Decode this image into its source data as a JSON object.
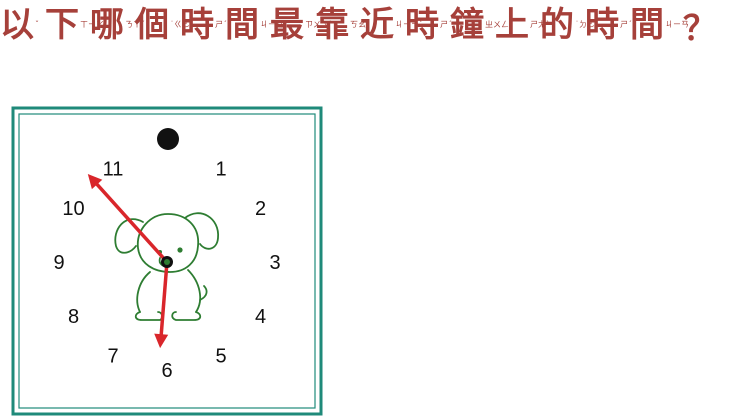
{
  "question": {
    "chars": [
      {
        "han": "以",
        "zhuyin": "ˇ"
      },
      {
        "han": "下",
        "zhuyin": "ㄒㄧㄚˋ"
      },
      {
        "han": "哪",
        "zhuyin": "ㄋㄚˇ"
      },
      {
        "han": "個",
        "zhuyin": "˙ㄍㄜ"
      },
      {
        "han": "時",
        "zhuyin": "ㄕˊ"
      },
      {
        "han": "間",
        "zhuyin": "ㄐㄧㄢ"
      },
      {
        "han": "最",
        "zhuyin": "ㄗㄨㄟˋ"
      },
      {
        "han": "靠",
        "zhuyin": "ㄎㄠˋ"
      },
      {
        "han": "近",
        "zhuyin": "ㄐㄧㄣˋ"
      },
      {
        "han": "時",
        "zhuyin": "ㄕˊ"
      },
      {
        "han": "鐘",
        "zhuyin": "ㄓㄨㄥ"
      },
      {
        "han": "上",
        "zhuyin": "ㄕㄤˋ"
      },
      {
        "han": "的",
        "zhuyin": "˙ㄉㄜ"
      },
      {
        "han": "時",
        "zhuyin": "ㄕˊ"
      },
      {
        "han": "間",
        "zhuyin": "ㄐㄧㄢ"
      }
    ],
    "end_mark": "？"
  },
  "clock": {
    "numerals": [
      "1",
      "2",
      "3",
      "4",
      "5",
      "6",
      "7",
      "8",
      "9",
      "10",
      "11"
    ],
    "hour_hand_value": 6,
    "minute_hand_value": 53,
    "frame_color": "#1f8a7a",
    "hand_color": "#d9262b",
    "dog_color": "#2e7d32"
  }
}
